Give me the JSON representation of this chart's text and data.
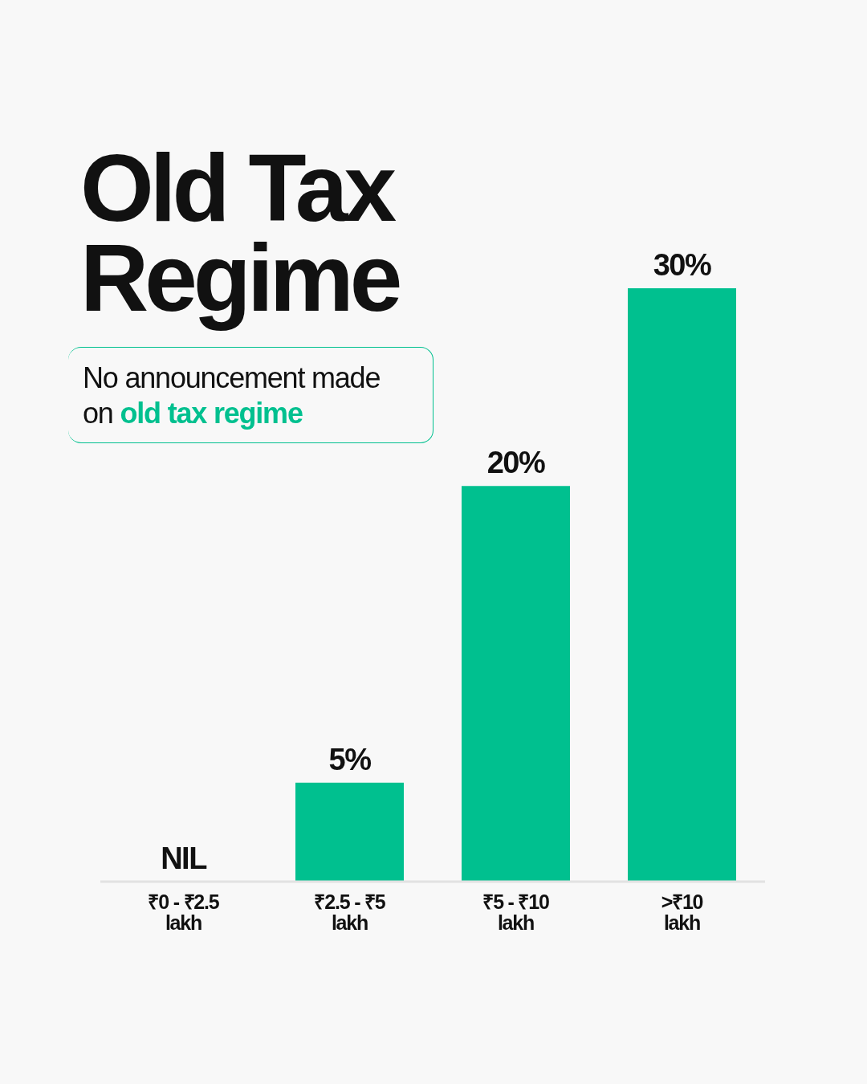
{
  "chart_data": {
    "type": "bar",
    "title": "Old Tax Regime",
    "subtitle": "No announcement made on old tax regime",
    "categories": [
      "₹0 - ₹2.5 lakh",
      "₹2.5 - ₹5 lakh",
      "₹5 - ₹10 lakh",
      ">₹10 lakh"
    ],
    "values": [
      0,
      5,
      20,
      30
    ],
    "color": "#00c08f",
    "value_labels": [
      "NIL",
      "5%",
      "20%",
      "30%"
    ],
    "grid": false,
    "legend": false
  }
}
